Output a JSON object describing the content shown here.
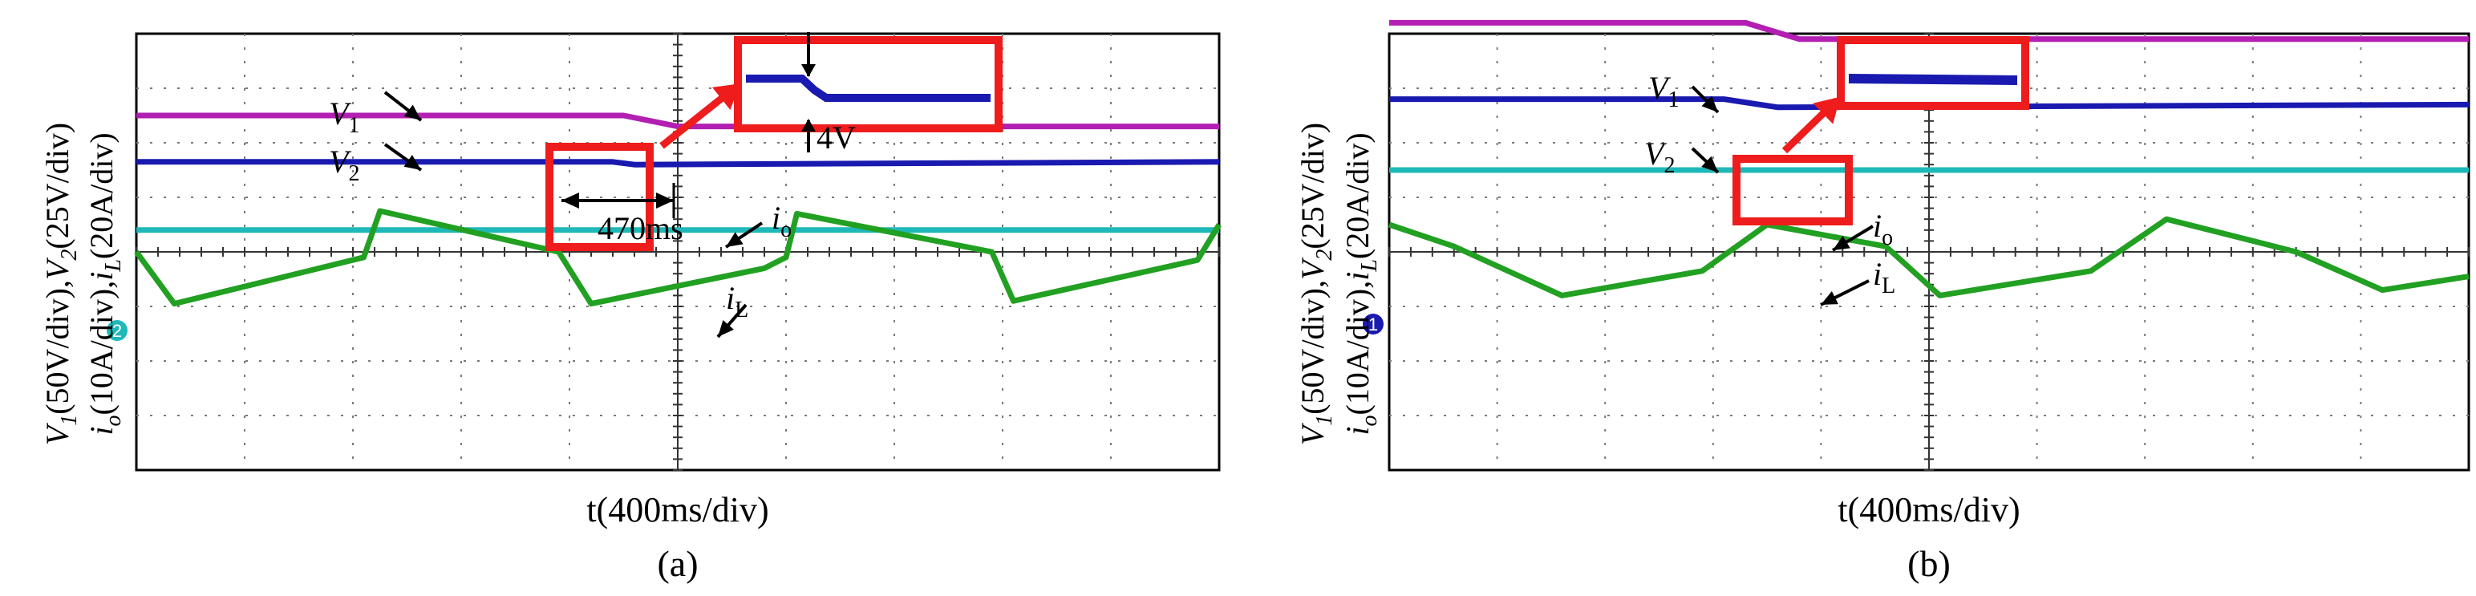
{
  "figure": {
    "panels": [
      {
        "caption": "(a)",
        "ylabel": "V1(50V/div),V2(25V/div) io(10A/div),iL(20A/div)",
        "ylabel_parts": {
          "line1": [
            {
              "t": "V",
              "i": true
            },
            {
              "t": "1",
              "sub": true
            },
            {
              "t": "(50V/div),"
            },
            {
              "t": "V",
              "i": true
            },
            {
              "t": "2",
              "sub": true
            },
            {
              "t": "(25V/div)"
            }
          ],
          "line2": [
            {
              "t": "i",
              "i": true
            },
            {
              "t": "o",
              "sub": true
            },
            {
              "t": "(10A/div),"
            },
            {
              "t": "i",
              "i": true
            },
            {
              "t": "L",
              "sub": true
            },
            {
              "t": "(20A/div)"
            }
          ]
        },
        "xlabel": "t(400ms/div)",
        "annotations": {
          "v1": {
            "main": "V",
            "sub": "1"
          },
          "v2": {
            "main": "V",
            "sub": "2"
          },
          "io": {
            "main": "i",
            "sub": "o"
          },
          "iL": {
            "main": "i",
            "sub": "L"
          },
          "time_marker": "470ms",
          "step": "4V"
        },
        "channel_marker": "2"
      },
      {
        "caption": "(b)",
        "ylabel": "V1(50V/div),V2(25V/div) io(10A/div),iL(20A/div)",
        "ylabel_parts": {
          "line1": [
            {
              "t": "V",
              "i": true
            },
            {
              "t": "1",
              "sub": true
            },
            {
              "t": "(50V/div),"
            },
            {
              "t": "V",
              "i": true
            },
            {
              "t": "2",
              "sub": true
            },
            {
              "t": "(25V/div)"
            }
          ],
          "line2": [
            {
              "t": "i",
              "i": true
            },
            {
              "t": "o",
              "sub": true
            },
            {
              "t": "(10A/div),"
            },
            {
              "t": "i",
              "i": true
            },
            {
              "t": "L",
              "sub": true
            },
            {
              "t": "(20A/div)"
            }
          ]
        },
        "xlabel": "t(400ms/div)",
        "annotations": {
          "v1": {
            "main": "V",
            "sub": "1"
          },
          "v2": {
            "main": "V",
            "sub": "2"
          },
          "io": {
            "main": "i",
            "sub": "o"
          },
          "iL": {
            "main": "i",
            "sub": "L"
          }
        },
        "channel_marker": "1"
      }
    ]
  },
  "colors": {
    "v1": "#b21fb2",
    "v2": "#1a1ab0",
    "io": "#1fb8b8",
    "iL": "#22a022",
    "highlight": "#ee1c1c",
    "grid": "#7a7a7a"
  },
  "chart_data": [
    {
      "type": "line",
      "title": "",
      "xlabel": "t(400ms/div)",
      "ylabel": "V1(50V/div),V2(25V/div) io(10A/div),iL(20A/div)",
      "xlim": [
        0,
        10
      ],
      "ylim": [
        -4,
        4
      ],
      "grid": true,
      "series": [
        {
          "name": "V1",
          "x": [
            0,
            4.5,
            5.0,
            10
          ],
          "y": [
            2.5,
            2.5,
            2.3,
            2.3
          ]
        },
        {
          "name": "V2",
          "x": [
            0,
            4.4,
            4.6,
            10
          ],
          "y": [
            1.65,
            1.65,
            1.6,
            1.65
          ]
        },
        {
          "name": "io",
          "x": [
            0,
            10
          ],
          "y": [
            0.4,
            0.4
          ]
        },
        {
          "name": "iL",
          "x": [
            0,
            0.35,
            2.1,
            2.25,
            3.9,
            4.2,
            5.8,
            6.0,
            6.1,
            7.9,
            8.1,
            9.8,
            10.0
          ],
          "y": [
            0,
            -0.95,
            -0.1,
            0.75,
            0,
            -0.95,
            -0.3,
            -0.1,
            0.7,
            0,
            -0.9,
            -0.15,
            0.5
          ]
        }
      ]
    },
    {
      "type": "line",
      "title": "",
      "xlabel": "t(400ms/div)",
      "ylabel": "V1(50V/div),V2(25V/div) io(10A/div),iL(20A/div)",
      "xlim": [
        0,
        10
      ],
      "ylim": [
        -4,
        4
      ],
      "grid": true,
      "series": [
        {
          "name": "V1",
          "x": [
            0,
            3.3,
            3.8,
            10
          ],
          "y": [
            4.2,
            4.2,
            3.9,
            3.9
          ]
        },
        {
          "name": "V2",
          "x": [
            0,
            3.1,
            3.6,
            10
          ],
          "y": [
            2.8,
            2.8,
            2.65,
            2.7
          ]
        },
        {
          "name": "io",
          "x": [
            0,
            10
          ],
          "y": [
            1.5,
            1.5
          ]
        },
        {
          "name": "iL",
          "x": [
            0,
            0.6,
            1.6,
            2.9,
            3.5,
            4.6,
            5.1,
            6.5,
            7.2,
            8.4,
            9.2,
            10.0
          ],
          "y": [
            0.5,
            0.1,
            -0.8,
            -0.35,
            0.5,
            0.1,
            -0.8,
            -0.35,
            0.6,
            0.0,
            -0.7,
            -0.45
          ]
        }
      ]
    }
  ]
}
